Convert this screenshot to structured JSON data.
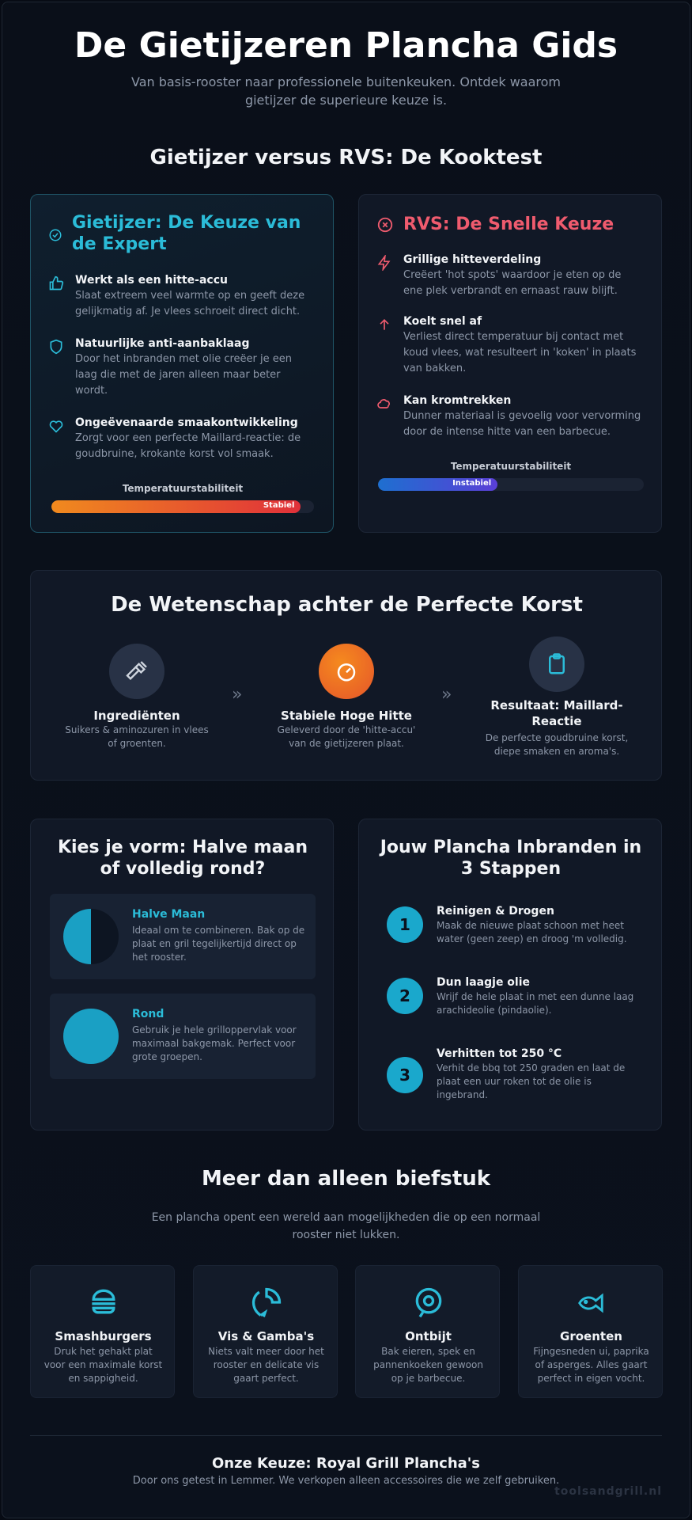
{
  "header": {
    "title": "De Gietijzeren Plancha Gids",
    "subtitle_line1": "Van basis-rooster naar professionele buitenkeuken. Ontdek waarom",
    "subtitle_line2": "gietijzer de superieure keuze is."
  },
  "comparison": {
    "title": "Gietijzer versus RVS: De Kooktest",
    "cast_iron": {
      "heading_line1": "Gietijzer: De Keuze van",
      "heading_line2": "de Expert",
      "items": [
        {
          "title": "Werkt als een hitte-accu",
          "lines": [
            "Slaat extreem veel warmte op en geeft deze",
            "gelijkmatig af. Je vlees schroeit direct dicht."
          ],
          "icon": "thumbs-up-icon"
        },
        {
          "title": "Natuurlijke anti-aanbaklaag",
          "lines": [
            "Door het inbranden met olie creëer je een",
            "laag die met de jaren alleen maar beter",
            "wordt."
          ],
          "icon": "shield-icon"
        },
        {
          "title": "Ongeëvenaarde smaakontwikkeling",
          "lines": [
            "Zorgt voor een perfecte Maillard-reactie: de",
            "goudbruine, krokante korst vol smaak."
          ],
          "icon": "heart-icon"
        }
      ],
      "meter_label": "Temperatuurstabiliteit",
      "meter_value_label": "Stabiel",
      "meter_fraction": 0.95,
      "accent": "#2bbcd8"
    },
    "stainless": {
      "heading": "RVS: De Snelle Keuze",
      "items": [
        {
          "title": "Grillige hitteverdeling",
          "lines": [
            "Creëert 'hot spots' waardoor je eten op de",
            "ene plek verbrandt en ernaast rauw blijft."
          ],
          "icon": "lightning-icon"
        },
        {
          "title": "Koelt snel af",
          "lines": [
            "Verliest direct temperatuur bij contact met",
            "koud vlees, wat resulteert in 'koken' in plaats",
            "van bakken."
          ],
          "icon": "arrow-up-icon"
        },
        {
          "title": "Kan kromtrekken",
          "lines": [
            "Dunner materiaal is gevoelig voor vervorming",
            "door de intense hitte van een barbecue."
          ],
          "icon": "cloud-icon"
        }
      ],
      "meter_label": "Temperatuurstabiliteit",
      "meter_value_label": "Instabiel",
      "meter_fraction": 0.45,
      "accent": "#ef5b6e"
    }
  },
  "science": {
    "title": "De Wetenschap achter de Perfecte Korst",
    "steps": [
      {
        "title": "Ingrediënten",
        "lines": [
          "Suikers & aminozuren in vlees",
          "of groenten."
        ],
        "icon": "hammer-icon"
      },
      {
        "title": "Stabiele Hoge Hitte",
        "lines": [
          "Geleverd door de 'hitte-accu'",
          "van de gietijzeren plaat."
        ],
        "icon": "gauge-icon"
      },
      {
        "title_line1": "Resultaat: Maillard-",
        "title_line2": "Reactie",
        "lines": [
          "De perfecte goudbruine korst,",
          "diepe smaken en aroma's."
        ],
        "icon": "clipboard-icon"
      }
    ]
  },
  "shapes": {
    "title_line1": "Kies je vorm: Halve maan",
    "title_line2": "of volledig rond?",
    "options": [
      {
        "title": "Halve Maan",
        "lines": [
          "Ideaal om te combineren. Bak op de",
          "plaat en gril tegelijkertijd direct op",
          "het rooster."
        ]
      },
      {
        "title": "Rond",
        "lines": [
          "Gebruik je hele grilloppervlak voor",
          "maximaal bakgemak. Perfect voor",
          "grote groepen."
        ]
      }
    ]
  },
  "seasoning": {
    "title_line1": "Jouw Plancha Inbranden in",
    "title_line2": "3 Stappen",
    "steps": [
      {
        "num": "1",
        "title": "Reinigen & Drogen",
        "lines": [
          "Maak de nieuwe plaat schoon met heet",
          "water (geen zeep) en droog 'm volledig."
        ]
      },
      {
        "num": "2",
        "title": "Dun laagje olie",
        "lines": [
          "Wrijf de hele plaat in met een dunne laag",
          "arachideolie (pindaolie)."
        ]
      },
      {
        "num": "3",
        "title": "Verhitten tot 250 °C",
        "lines": [
          "Verhit de bbq tot 250 graden en laat de",
          "plaat een uur roken tot de olie is",
          "ingebrand."
        ]
      }
    ]
  },
  "uses": {
    "title": "Meer dan alleen biefstuk",
    "intro_line1": "Een plancha opent een wereld aan mogelijkheden die op een normaal",
    "intro_line2": "rooster niet lukken.",
    "cards": [
      {
        "title": "Smashburgers",
        "lines": [
          "Druk het gehakt plat",
          "voor een maximale korst",
          "en sappigheid."
        ],
        "icon": "burger-icon"
      },
      {
        "title": "Vis & Gamba's",
        "lines": [
          "Niets valt meer door het",
          "rooster en delicate vis",
          "gaart perfect."
        ],
        "icon": "shrimp-icon"
      },
      {
        "title": "Ontbijt",
        "lines": [
          "Bak eieren, spek en",
          "pannenkoeken gewoon",
          "op je barbecue."
        ],
        "icon": "egg-icon"
      },
      {
        "title": "Groenten",
        "lines": [
          "Fijngesneden ui, paprika",
          "of asperges. Alles gaart",
          "perfect in eigen vocht."
        ],
        "icon": "fish-icon"
      }
    ]
  },
  "footer": {
    "title": "Onze Keuze: Royal Grill Plancha's",
    "text": "Door ons getest in Lemmer. We verkopen alleen accessoires die we zelf gebruiken.",
    "watermark": "toolsandgrill.nl"
  },
  "colors": {
    "background": "#070b14",
    "cyan": "#2bbcd8",
    "red": "#ef5b6e",
    "orange": "#f0781e"
  }
}
